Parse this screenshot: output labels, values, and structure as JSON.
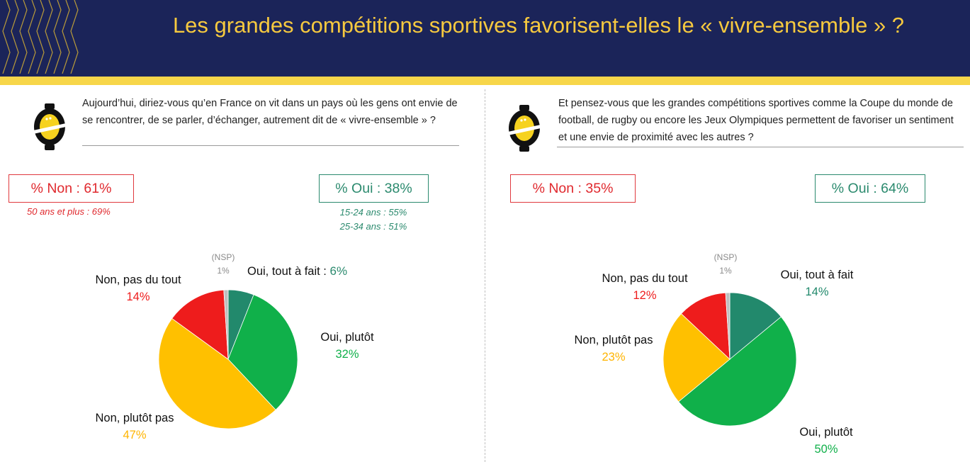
{
  "title": "Les grandes compétitions sportives favorisent-elles le « vivre-ensemble » ?",
  "colors": {
    "header_bg": "#1b2459",
    "accent_yellow": "#f7d64a",
    "oui_tout_a_fait": "#22896c",
    "oui_plutot": "#10b04a",
    "non_plutot_pas": "#ffc000",
    "non_pas_du_tout": "#ee1c1c",
    "nsp": "#bfbfbf"
  },
  "left": {
    "question": "Aujourd’hui, diriez-vous qu’en France on vit dans un pays où les gens ont envie de se rencontrer, de se parler, d’échanger, autrement dit de « vivre-ensemble » ?",
    "non_box": "% Non : 61%",
    "oui_box": "% Oui  : 38%",
    "non_sub": "50 ans et plus : 69%",
    "oui_sub_1": "15-24 ans : 55%",
    "oui_sub_2": "25-34 ans : 51%",
    "labels": {
      "nsp": "(NSP)",
      "nsp_pct": "1%",
      "oui_tout": "Oui, tout à fait : ",
      "oui_tout_pct": "6%",
      "oui_plutot": "Oui, plutôt",
      "oui_plutot_pct": "32%",
      "non_plutot_pas": "Non, plutôt pas",
      "non_plutot_pas_pct": "47%",
      "non_pas_du_tout": "Non, pas du tout",
      "non_pas_du_tout_pct": "14%"
    }
  },
  "right": {
    "question": "Et pensez-vous que les grandes compétitions sportives comme la Coupe du monde de football, de rugby ou encore les Jeux Olympiques permettent de favoriser un sentiment et une envie de proximité avec les autres ?",
    "non_box": "% Non : 35%",
    "oui_box": "% Oui  : 64%",
    "labels": {
      "nsp": "(NSP)",
      "nsp_pct": "1%",
      "oui_tout": "Oui, tout à fait",
      "oui_tout_pct": "14%",
      "oui_plutot": "Oui, plutôt",
      "oui_plutot_pct": "50%",
      "non_plutot_pas": "Non, plutôt pas",
      "non_plutot_pas_pct": "23%",
      "non_pas_du_tout": "Non, pas du tout",
      "non_pas_du_tout_pct": "12%"
    }
  },
  "chart_data": [
    {
      "type": "pie",
      "categories": [
        "Oui, tout à fait",
        "Oui, plutôt",
        "Non, plutôt pas",
        "Non, pas du tout",
        "(NSP)"
      ],
      "values": [
        6,
        32,
        47,
        14,
        1
      ],
      "colors": [
        "#22896c",
        "#10b04a",
        "#ffc000",
        "#ee1c1c",
        "#bfbfbf"
      ]
    },
    {
      "type": "pie",
      "categories": [
        "Oui, tout à fait",
        "Oui, plutôt",
        "Non, plutôt pas",
        "Non, pas du tout",
        "(NSP)"
      ],
      "values": [
        14,
        50,
        23,
        12,
        1
      ],
      "colors": [
        "#22896c",
        "#10b04a",
        "#ffc000",
        "#ee1c1c",
        "#bfbfbf"
      ]
    }
  ]
}
